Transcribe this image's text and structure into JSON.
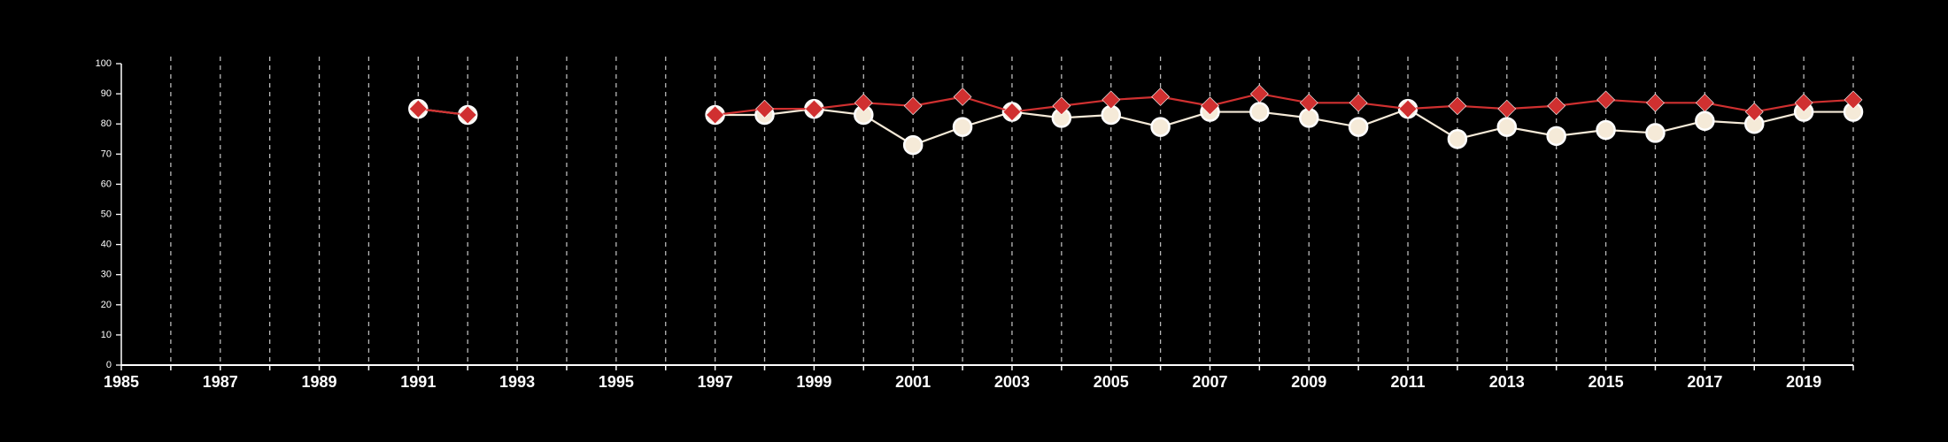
{
  "chart_data": {
    "type": "line",
    "title": "",
    "xlabel": "",
    "ylabel": "",
    "xlim": [
      1985,
      2020
    ],
    "ylim": [
      0,
      100
    ],
    "x_ticks": [
      1985,
      1987,
      1989,
      1991,
      1993,
      1995,
      1997,
      1999,
      2001,
      2003,
      2005,
      2007,
      2009,
      2011,
      2013,
      2015,
      2017,
      2019
    ],
    "x_tick_labels": [
      "1985",
      "1987",
      "1989",
      "1991",
      "1993",
      "1995",
      "1997",
      "1999",
      "2001",
      "2003",
      "2005",
      "2007",
      "2009",
      "2011",
      "2013",
      "2015",
      "2017",
      "2019"
    ],
    "y_ticks": [
      0,
      10,
      20,
      30,
      40,
      50,
      60,
      70,
      80,
      90,
      100
    ],
    "y_tick_labels": [
      "0",
      "10",
      "20",
      "30",
      "40",
      "50",
      "60",
      "70",
      "80",
      "90",
      "100"
    ],
    "vertical_grid": "dashed, every year",
    "horizontal_grid": false,
    "legend": "none",
    "series": [
      {
        "marker": "circle",
        "color": "#f5ead8",
        "points": [
          [
            1991,
            85
          ],
          [
            1992,
            83
          ],
          [
            1997,
            83
          ],
          [
            1998,
            83
          ],
          [
            1999,
            85
          ],
          [
            2000,
            83
          ],
          [
            2001,
            73
          ],
          [
            2002,
            79
          ],
          [
            2003,
            84
          ],
          [
            2004,
            82
          ],
          [
            2005,
            83
          ],
          [
            2006,
            79
          ],
          [
            2007,
            84
          ],
          [
            2008,
            84
          ],
          [
            2009,
            82
          ],
          [
            2010,
            79
          ],
          [
            2011,
            85
          ],
          [
            2012,
            75
          ],
          [
            2013,
            79
          ],
          [
            2014,
            76
          ],
          [
            2015,
            78
          ],
          [
            2016,
            77
          ],
          [
            2017,
            81
          ],
          [
            2018,
            80
          ],
          [
            2019,
            84
          ],
          [
            2020,
            84
          ]
        ]
      },
      {
        "marker": "diamond",
        "color": "#d03030",
        "points": [
          [
            1991,
            85
          ],
          [
            1992,
            83
          ],
          [
            1997,
            83
          ],
          [
            1998,
            85
          ],
          [
            1999,
            85
          ],
          [
            2000,
            87
          ],
          [
            2001,
            86
          ],
          [
            2002,
            89
          ],
          [
            2003,
            84
          ],
          [
            2004,
            86
          ],
          [
            2005,
            88
          ],
          [
            2006,
            89
          ],
          [
            2007,
            86
          ],
          [
            2008,
            90
          ],
          [
            2009,
            87
          ],
          [
            2010,
            87
          ],
          [
            2011,
            85
          ],
          [
            2012,
            86
          ],
          [
            2013,
            85
          ],
          [
            2014,
            86
          ],
          [
            2015,
            88
          ],
          [
            2016,
            87
          ],
          [
            2017,
            87
          ],
          [
            2018,
            84
          ],
          [
            2019,
            87
          ],
          [
            2020,
            88
          ]
        ]
      }
    ]
  }
}
